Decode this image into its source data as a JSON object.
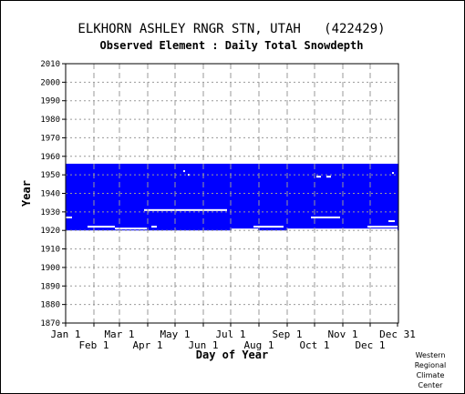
{
  "chart_data": {
    "type": "heatmap",
    "title": "ELKHORN ASHLEY RNGR STN, UTAH   (422429)",
    "subtitle": "Observed Element : Daily Total Snowdepth",
    "xlabel": "Day of Year",
    "ylabel": "Year",
    "xlim": [
      1,
      366
    ],
    "ylim": [
      1870,
      2010
    ],
    "grid": true,
    "data_color": "#0000ff",
    "x_ticks_upper": [
      {
        "label": "Jan 1",
        "day": 1
      },
      {
        "label": "Mar 1",
        "day": 60
      },
      {
        "label": "May 1",
        "day": 121
      },
      {
        "label": "Jul 1",
        "day": 182
      },
      {
        "label": "Sep 1",
        "day": 244
      },
      {
        "label": "Nov 1",
        "day": 305
      },
      {
        "label": "Dec 31",
        "day": 365
      }
    ],
    "x_ticks_lower": [
      {
        "label": "Feb 1",
        "day": 32
      },
      {
        "label": "Apr 1",
        "day": 91
      },
      {
        "label": "Jun 1",
        "day": 152
      },
      {
        "label": "Aug 1",
        "day": 213
      },
      {
        "label": "Oct 1",
        "day": 274
      },
      {
        "label": "Dec 1",
        "day": 335
      }
    ],
    "y_ticks": [
      "1870",
      "1880",
      "1890",
      "1900",
      "1910",
      "1920",
      "1930",
      "1940",
      "1950",
      "1960",
      "1970",
      "1980",
      "1990",
      "2000",
      "2010"
    ],
    "observed_record": {
      "first_year": 1920,
      "last_year": 1956
    },
    "missing_periods": [
      {
        "year": 1927,
        "day_start": 1,
        "day_end": 8
      },
      {
        "year": 1922,
        "day_start": 25,
        "day_end": 55
      },
      {
        "year": 1921,
        "day_start": 55,
        "day_end": 90
      },
      {
        "year": 1922,
        "day_start": 95,
        "day_end": 101
      },
      {
        "year": 1931,
        "day_start": 87,
        "day_end": 178
      },
      {
        "year": 1922,
        "day_start": 207,
        "day_end": 240
      },
      {
        "year": 1927,
        "day_start": 270,
        "day_end": 302
      },
      {
        "year": 1922,
        "day_start": 332,
        "day_end": 365
      },
      {
        "year": 1925,
        "day_start": 355,
        "day_end": 362
      },
      {
        "year": 1949,
        "day_start": 276,
        "day_end": 281
      },
      {
        "year": 1949,
        "day_start": 287,
        "day_end": 292
      },
      {
        "year": 1952,
        "day_start": 130,
        "day_end": 132
      },
      {
        "year": 1950,
        "day_start": 135,
        "day_end": 137
      },
      {
        "year": 1951,
        "day_start": 359,
        "day_end": 361
      }
    ],
    "unobserved_periods": [
      {
        "year": 1919,
        "day_start": 183,
        "day_end": 212
      },
      {
        "year": 1919,
        "day_start": 244,
        "day_end": 365
      }
    ]
  },
  "credit": [
    "Western",
    "Regional",
    "Climate",
    "Center"
  ]
}
